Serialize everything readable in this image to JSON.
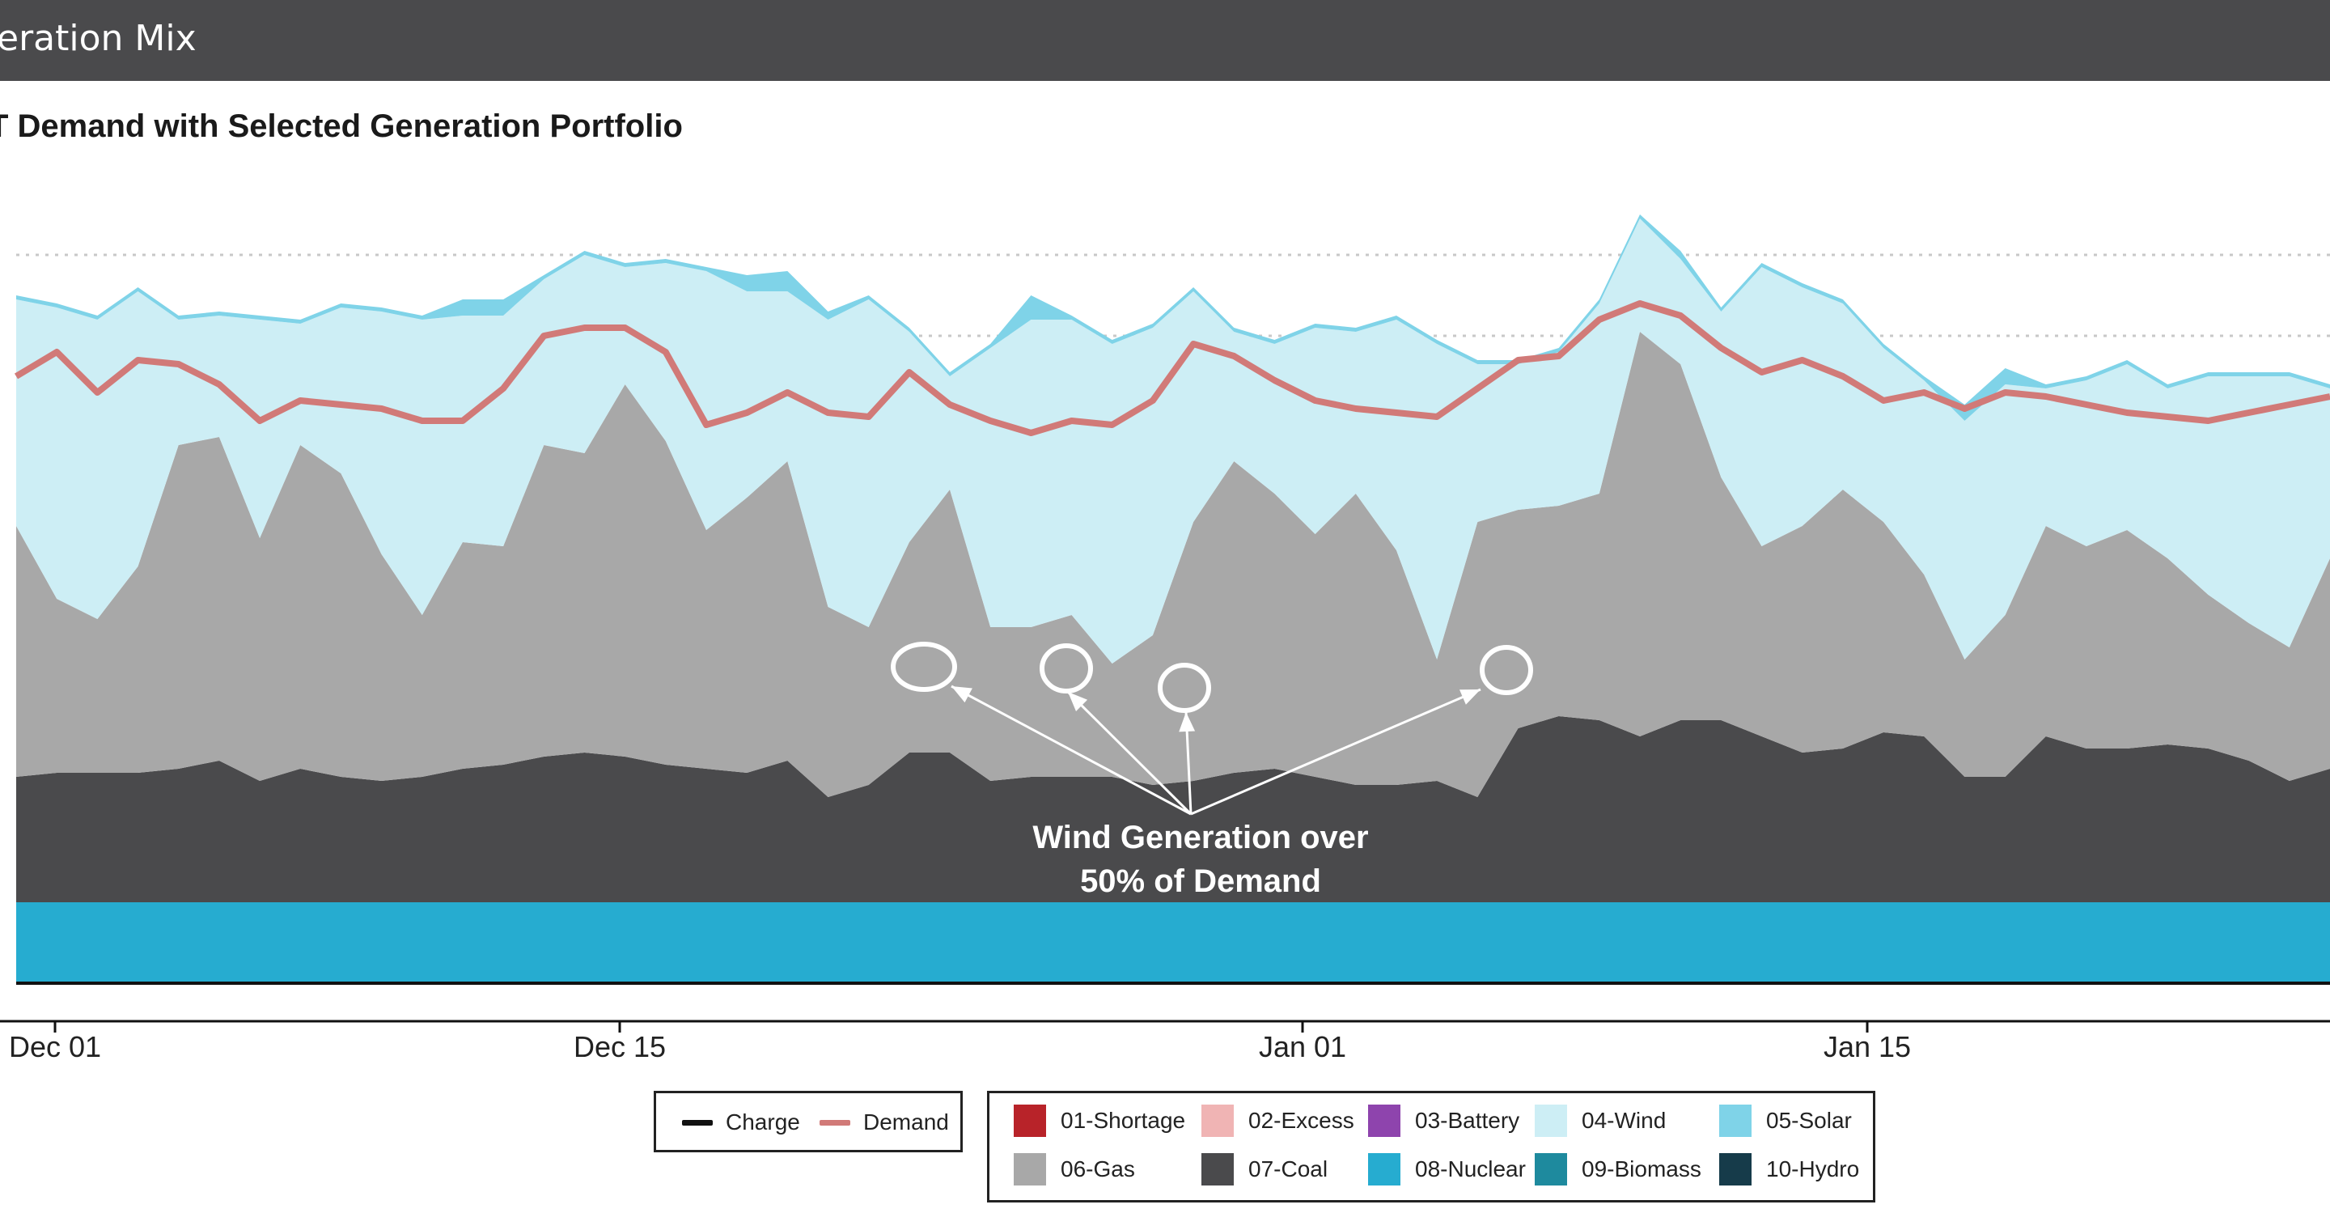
{
  "header": {
    "title": "eration Mix"
  },
  "chart_data": {
    "type": "area",
    "title": "T Demand with Selected Generation Portfolio",
    "x_tick_labels": [
      "Dec 01",
      "Dec 15",
      "Jan 01",
      "Jan 15"
    ],
    "y_grid": true,
    "legend_position": "bottom",
    "annotation": {
      "lines": [
        "Wind Generation over",
        "50% of Demand"
      ],
      "color": "#ffffff"
    },
    "stack_order": [
      "08-Nuclear",
      "07-Coal",
      "06-Gas",
      "04-Wind",
      "05-Solar"
    ],
    "series": [
      {
        "name": "08-Nuclear",
        "color": "#26acd0",
        "values": [
          1.0,
          1.0,
          1.0,
          1.0,
          1.0,
          1.0,
          1.0,
          1.0,
          1.0,
          1.0,
          1.0,
          1.0,
          1.0,
          1.0,
          1.0,
          1.0,
          1.0,
          1.0,
          1.0,
          1.0,
          1.0,
          1.0,
          1.0,
          1.0,
          1.0,
          1.0,
          1.0,
          1.0,
          1.0,
          1.0,
          1.0,
          1.0,
          1.0,
          1.0,
          1.0,
          1.0,
          1.0,
          1.0,
          1.0,
          1.0,
          1.0,
          1.0,
          1.0,
          1.0,
          1.0,
          1.0,
          1.0,
          1.0,
          1.0,
          1.0,
          1.0,
          1.0,
          1.0,
          1.0,
          1.0,
          1.0,
          1.0,
          1.0
        ]
      },
      {
        "name": "07-Coal",
        "color": "#4a4a4c",
        "values": [
          1.55,
          1.6,
          1.6,
          1.6,
          1.65,
          1.75,
          1.5,
          1.65,
          1.55,
          1.5,
          1.55,
          1.65,
          1.7,
          1.8,
          1.85,
          1.8,
          1.7,
          1.65,
          1.6,
          1.75,
          1.3,
          1.45,
          1.85,
          1.85,
          1.5,
          1.55,
          1.55,
          1.55,
          1.45,
          1.5,
          1.6,
          1.65,
          1.55,
          1.45,
          1.45,
          1.5,
          1.3,
          2.15,
          2.3,
          2.25,
          2.05,
          2.25,
          2.25,
          2.05,
          1.85,
          1.9,
          2.1,
          2.05,
          1.55,
          1.55,
          2.05,
          1.9,
          1.9,
          1.95,
          1.9,
          1.75,
          1.5,
          1.65
        ]
      },
      {
        "name": "06-Gas",
        "color": "#a8a8a8",
        "values": [
          3.1,
          2.15,
          1.9,
          2.55,
          4.0,
          4.0,
          3.0,
          4.0,
          3.75,
          2.8,
          2.0,
          2.8,
          2.7,
          3.85,
          3.7,
          4.6,
          4.0,
          2.95,
          3.4,
          3.7,
          2.35,
          1.95,
          2.6,
          3.25,
          1.9,
          1.85,
          2.0,
          1.4,
          1.85,
          3.2,
          3.85,
          3.4,
          3.0,
          3.6,
          2.9,
          1.5,
          3.4,
          2.7,
          2.6,
          2.8,
          5.0,
          4.4,
          3.0,
          2.35,
          2.8,
          3.2,
          2.6,
          2.0,
          1.45,
          2.0,
          2.6,
          2.5,
          2.7,
          2.3,
          1.9,
          1.7,
          1.65,
          2.6
        ]
      },
      {
        "name": "05-Solar",
        "color": "#7fd3e8",
        "values": [
          0.05,
          0.05,
          0.05,
          0.05,
          0.05,
          0.05,
          0.05,
          0.05,
          0.05,
          0.05,
          0.05,
          0.2,
          0.2,
          0.05,
          0.05,
          0.05,
          0.05,
          0.05,
          0.2,
          0.25,
          0.1,
          0.05,
          0.05,
          0.05,
          0.05,
          0.3,
          0.05,
          0.05,
          0.05,
          0.05,
          0.05,
          0.05,
          0.05,
          0.05,
          0.05,
          0.05,
          0.05,
          0.05,
          0.05,
          0.05,
          0.05,
          0.1,
          0.05,
          0.05,
          0.05,
          0.05,
          0.05,
          0.05,
          0.2,
          0.2,
          0.05,
          0.05,
          0.05,
          0.05,
          0.05,
          0.05,
          0.05,
          0.05
        ]
      },
      {
        "name": "04-Wind",
        "color": "#cdeef5",
        "values": [
          2.8,
          3.6,
          3.7,
          3.4,
          1.55,
          1.5,
          2.7,
          1.5,
          2.05,
          3.0,
          3.65,
          2.8,
          2.85,
          2.05,
          2.45,
          1.45,
          2.2,
          3.2,
          2.55,
          2.1,
          3.55,
          4.05,
          2.6,
          1.4,
          3.45,
          3.8,
          3.65,
          3.95,
          3.8,
          2.85,
          1.6,
          1.85,
          2.55,
          2.0,
          2.85,
          3.9,
          1.95,
          1.8,
          1.9,
          2.35,
          1.4,
          1.3,
          2.05,
          3.45,
          2.95,
          2.3,
          2.15,
          2.4,
          2.95,
          2.85,
          1.7,
          2.05,
          2.05,
          2.1,
          2.7,
          3.05,
          3.35,
          2.1
        ]
      },
      {
        "name": "Demand",
        "color": "#d17a78",
        "values": [
          7.5,
          7.8,
          7.3,
          7.7,
          7.65,
          7.4,
          6.95,
          7.2,
          7.15,
          7.1,
          6.95,
          6.95,
          7.35,
          8.0,
          8.1,
          8.1,
          7.8,
          6.9,
          7.05,
          7.3,
          7.05,
          7.0,
          7.55,
          7.15,
          6.95,
          6.8,
          6.95,
          6.9,
          7.2,
          7.9,
          7.75,
          7.45,
          7.2,
          7.1,
          7.05,
          7.0,
          7.35,
          7.7,
          7.75,
          8.2,
          8.4,
          8.25,
          7.85,
          7.55,
          7.7,
          7.5,
          7.2,
          7.3,
          7.1,
          7.3,
          7.25,
          7.15,
          7.05,
          7.0,
          6.95,
          7.05,
          7.15,
          7.25
        ]
      }
    ],
    "legend": {
      "lines": [
        {
          "label": "Charge",
          "color": "#111111"
        },
        {
          "label": "Demand",
          "color": "#d17a78"
        }
      ],
      "fills": [
        {
          "label": "01-Shortage",
          "color": "#b82329"
        },
        {
          "label": "02-Excess",
          "color": "#f0b4b4"
        },
        {
          "label": "03-Battery",
          "color": "#8e44ad"
        },
        {
          "label": "04-Wind",
          "color": "#cdeef5"
        },
        {
          "label": "05-Solar",
          "color": "#7fd3e8"
        },
        {
          "label": "06-Gas",
          "color": "#a8a8a8"
        },
        {
          "label": "07-Coal",
          "color": "#4a4a4c"
        },
        {
          "label": "08-Nuclear",
          "color": "#26acd0"
        },
        {
          "label": "09-Biomass",
          "color": "#1e8a9e"
        },
        {
          "label": "10-Hydro",
          "color": "#163b4a"
        }
      ]
    }
  }
}
